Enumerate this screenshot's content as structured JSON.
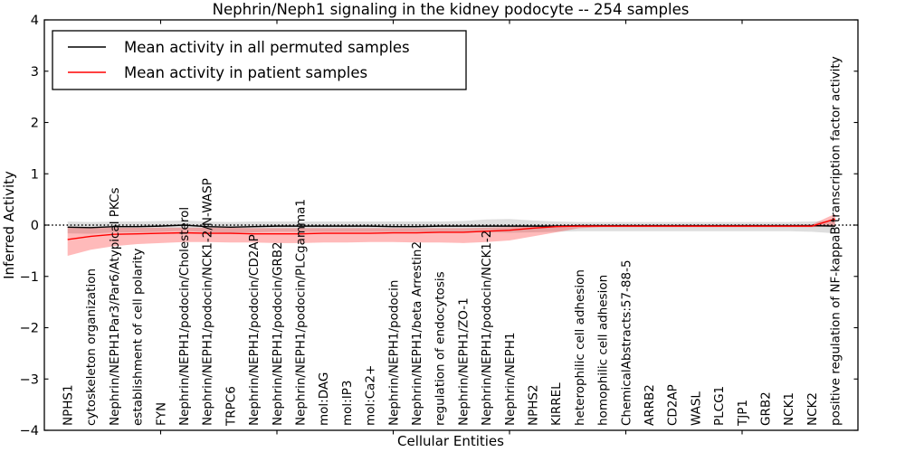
{
  "chart_data": {
    "type": "line",
    "title": "Nephrin/Neph1 signaling in the kidney podocyte -- 254 samples",
    "xlabel": "Cellular Entities",
    "ylabel": "Inferred Activity",
    "ylim": [
      -4,
      4
    ],
    "yticks": [
      4,
      3,
      2,
      1,
      0,
      -1,
      -2,
      -3,
      -4
    ],
    "ytick_labels": [
      "4",
      "3",
      "2",
      "1",
      "0",
      "−1",
      "−2",
      "−3",
      "−4"
    ],
    "grid": false,
    "zero_reference_line": 0,
    "legend_position": "upper left",
    "axis_color": "#000000",
    "background_color": "#ffffff",
    "categories": [
      "NPHS1",
      "cytoskeleton organization",
      "Nephrin/NEPH1Par3/Par6/Atypical PKCs",
      "establishment of cell polarity",
      "FYN",
      "Nephrin/NEPH1/podocin/Cholesterol",
      "Nephrin/NEPH1/podocin/NCK1-2/N-WASP",
      "TRPC6",
      "Nephrin/NEPH1/podocin/CD2AP",
      "Nephrin/NEPH1/podocin/GRB2",
      "Nephrin/NEPH1/podocin/PLCgamma1",
      "mol:DAG",
      "mol:IP3",
      "mol:Ca2+",
      "Nephrin/NEPH1/podocin",
      "Nephrin/NEPH1/beta Arrestin2",
      "regulation of endocytosis",
      "Nephrin/NEPH1/ZO-1",
      "Nephrin/NEPH1/podocin/NCK1-2",
      "Nephrin/NEPH1",
      "NPHS2",
      "KIRREL",
      "heterophilic cell adhesion",
      "homophilic cell adhesion",
      "ChemicalAbstracts:57-88-5",
      "ARRB2",
      "CD2AP",
      "WASL",
      "PLCG1",
      "TJP1",
      "GRB2",
      "NCK1",
      "NCK2",
      "positive regulation of NF-kappaB transcription factor activity"
    ],
    "series": [
      {
        "name": "Mean activity in all permuted samples",
        "color": "#000000",
        "band_color": "#00000021",
        "values": [
          -0.04,
          -0.05,
          -0.03,
          -0.03,
          -0.02,
          0.0,
          -0.03,
          -0.04,
          -0.03,
          -0.02,
          -0.02,
          -0.02,
          -0.02,
          -0.02,
          -0.03,
          -0.03,
          -0.02,
          -0.02,
          -0.02,
          -0.02,
          -0.02,
          -0.02,
          -0.01,
          -0.01,
          -0.01,
          -0.01,
          -0.01,
          -0.01,
          -0.01,
          -0.01,
          -0.01,
          -0.01,
          -0.01,
          -0.02
        ],
        "band_upper": [
          0.07,
          0.06,
          0.07,
          0.07,
          0.08,
          0.09,
          0.07,
          0.06,
          0.07,
          0.07,
          0.07,
          0.07,
          0.07,
          0.07,
          0.07,
          0.07,
          0.07,
          0.08,
          0.11,
          0.12,
          0.09,
          0.07,
          0.06,
          0.06,
          0.06,
          0.06,
          0.06,
          0.06,
          0.06,
          0.06,
          0.06,
          0.06,
          0.07,
          0.09
        ],
        "band_lower": [
          -0.16,
          -0.17,
          -0.14,
          -0.14,
          -0.13,
          -0.11,
          -0.14,
          -0.15,
          -0.14,
          -0.13,
          -0.13,
          -0.13,
          -0.13,
          -0.13,
          -0.13,
          -0.13,
          -0.13,
          -0.13,
          -0.14,
          -0.15,
          -0.14,
          -0.13,
          -0.12,
          -0.12,
          -0.12,
          -0.12,
          -0.12,
          -0.12,
          -0.12,
          -0.12,
          -0.12,
          -0.12,
          -0.13,
          -0.16
        ]
      },
      {
        "name": "Mean activity in patient samples",
        "color": "#ff0000",
        "band_color": "#ff000045",
        "values": [
          -0.28,
          -0.22,
          -0.18,
          -0.17,
          -0.16,
          -0.15,
          -0.16,
          -0.16,
          -0.17,
          -0.17,
          -0.17,
          -0.16,
          -0.16,
          -0.16,
          -0.15,
          -0.15,
          -0.14,
          -0.14,
          -0.12,
          -0.1,
          -0.06,
          -0.03,
          -0.02,
          -0.02,
          -0.02,
          -0.02,
          -0.02,
          -0.02,
          -0.02,
          -0.02,
          -0.02,
          -0.02,
          -0.02,
          0.12
        ],
        "band_upper": [
          -0.03,
          -0.04,
          -0.05,
          -0.05,
          -0.05,
          -0.05,
          -0.05,
          -0.05,
          -0.06,
          -0.06,
          -0.06,
          -0.06,
          -0.06,
          -0.06,
          -0.06,
          -0.06,
          -0.06,
          -0.06,
          -0.05,
          -0.04,
          -0.02,
          0.0,
          0.0,
          0.0,
          0.0,
          0.0,
          0.0,
          0.0,
          0.0,
          0.0,
          0.0,
          0.0,
          0.01,
          0.22
        ],
        "band_lower": [
          -0.6,
          -0.48,
          -0.41,
          -0.37,
          -0.35,
          -0.33,
          -0.33,
          -0.34,
          -0.34,
          -0.35,
          -0.35,
          -0.34,
          -0.34,
          -0.33,
          -0.33,
          -0.34,
          -0.34,
          -0.35,
          -0.33,
          -0.3,
          -0.22,
          -0.14,
          -0.06,
          -0.04,
          -0.04,
          -0.04,
          -0.04,
          -0.04,
          -0.04,
          -0.04,
          -0.04,
          -0.04,
          -0.04,
          -0.02
        ]
      }
    ]
  }
}
